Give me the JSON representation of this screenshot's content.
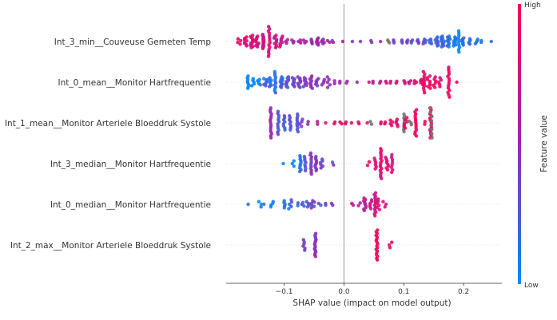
{
  "chart_data": {
    "type": "scatter",
    "subtype": "shap-beeswarm",
    "title": "",
    "xlabel": "SHAP value (impact on model output)",
    "ylabel": "",
    "xlim": [
      -0.197,
      0.264
    ],
    "xticks": [
      -0.1,
      0.0,
      0.1,
      0.2
    ],
    "xtick_labels": [
      "−0.1",
      "0.0",
      "0.1",
      "0.2"
    ],
    "zero_line": true,
    "grid": false,
    "colorbar": {
      "label": "Feature value",
      "high_label": "High",
      "low_label": "Low",
      "low_color": "#008afb",
      "mid_color": "#9c27b0",
      "high_color": "#ff0052",
      "placement": "right"
    },
    "features": [
      {
        "name": "Int_3_min__Couveuse Gemeten Temp",
        "clusters": [
          {
            "x": -0.175,
            "spread": 0.6,
            "n": 4,
            "c": 0.9
          },
          {
            "x": -0.165,
            "spread": 1.0,
            "n": 8,
            "c": 0.85
          },
          {
            "x": -0.155,
            "spread": 1.4,
            "n": 12,
            "c": 0.8
          },
          {
            "x": -0.145,
            "spread": 1.2,
            "n": 10,
            "c": 0.8
          },
          {
            "x": -0.135,
            "spread": 1.6,
            "n": 14,
            "c": 0.75
          },
          {
            "x": -0.125,
            "spread": 3.4,
            "n": 14,
            "c": 0.85
          },
          {
            "x": -0.115,
            "spread": 1.4,
            "n": 10,
            "c": 0.7
          },
          {
            "x": -0.105,
            "spread": 1.2,
            "n": 8,
            "c": 0.7
          },
          {
            "x": -0.095,
            "spread": 0.4,
            "n": 3,
            "c": 0.7
          },
          {
            "x": -0.085,
            "spread": 0.3,
            "n": 3,
            "c": 0.6
          },
          {
            "x": -0.075,
            "spread": 0.3,
            "n": 3,
            "c": 0.6
          },
          {
            "x": -0.065,
            "spread": 0.3,
            "n": 3,
            "c": 0.55
          },
          {
            "x": -0.055,
            "spread": 0.5,
            "n": 5,
            "c": 0.5
          },
          {
            "x": -0.045,
            "spread": 0.8,
            "n": 8,
            "c": 0.55
          },
          {
            "x": -0.035,
            "spread": 0.5,
            "n": 5,
            "c": 0.5
          },
          {
            "x": -0.025,
            "spread": 0.2,
            "n": 2,
            "c": 0.5
          },
          {
            "x": -0.018,
            "spread": 0.2,
            "n": 2,
            "c": 0.45
          },
          {
            "x": -0.002,
            "spread": 0.1,
            "n": 1,
            "c": 0.5
          },
          {
            "x": 0.015,
            "spread": 0.1,
            "n": 1,
            "c": 0.45
          },
          {
            "x": 0.03,
            "spread": 0.1,
            "n": 1,
            "c": 0.45
          },
          {
            "x": 0.045,
            "spread": 0.2,
            "n": 2,
            "c": 0.45
          },
          {
            "x": 0.06,
            "spread": 0.1,
            "n": 1,
            "c": 0.45
          },
          {
            "x": 0.075,
            "spread": 0.3,
            "n": 3,
            "c": -1
          },
          {
            "x": 0.085,
            "spread": 0.3,
            "n": 3,
            "c": 0.4
          },
          {
            "x": 0.095,
            "spread": 0.3,
            "n": 3,
            "c": 0.4
          },
          {
            "x": 0.105,
            "spread": 0.3,
            "n": 3,
            "c": 0.35
          },
          {
            "x": 0.115,
            "spread": 0.3,
            "n": 3,
            "c": 0.35
          },
          {
            "x": 0.125,
            "spread": 0.4,
            "n": 4,
            "c": 0.3
          },
          {
            "x": 0.135,
            "spread": 0.5,
            "n": 5,
            "c": 0.3
          },
          {
            "x": 0.145,
            "spread": 0.5,
            "n": 5,
            "c": 0.25
          },
          {
            "x": 0.155,
            "spread": 1.0,
            "n": 10,
            "c": 0.2
          },
          {
            "x": 0.165,
            "spread": 1.2,
            "n": 12,
            "c": 0.15
          },
          {
            "x": 0.175,
            "spread": 1.2,
            "n": 12,
            "c": 0.15
          },
          {
            "x": 0.185,
            "spread": 1.0,
            "n": 10,
            "c": 0.1
          },
          {
            "x": 0.192,
            "spread": 2.4,
            "n": 10,
            "c": 0.05
          },
          {
            "x": 0.2,
            "spread": 0.8,
            "n": 7,
            "c": 0.1
          },
          {
            "x": 0.21,
            "spread": 0.6,
            "n": 5,
            "c": 0.05
          },
          {
            "x": 0.222,
            "spread": 0.5,
            "n": 4,
            "c": 0.05
          },
          {
            "x": 0.23,
            "spread": 0.2,
            "n": 2,
            "c": 0.05
          },
          {
            "x": 0.245,
            "spread": 0.1,
            "n": 1,
            "c": 0.05
          }
        ]
      },
      {
        "name": "Int_0_mean__Monitor Hartfrequentie",
        "clusters": [
          {
            "x": -0.16,
            "spread": 1.4,
            "n": 8,
            "c": 0.05
          },
          {
            "x": -0.152,
            "spread": 0.8,
            "n": 5,
            "c": 0.1
          },
          {
            "x": -0.142,
            "spread": 0.6,
            "n": 5,
            "c": 0.1
          },
          {
            "x": -0.132,
            "spread": 0.8,
            "n": 7,
            "c": 0.15
          },
          {
            "x": -0.124,
            "spread": 1.0,
            "n": 8,
            "c": 0.15
          },
          {
            "x": -0.115,
            "spread": 2.4,
            "n": 12,
            "c": 0.15
          },
          {
            "x": -0.105,
            "spread": 1.2,
            "n": 10,
            "c": 0.2
          },
          {
            "x": -0.095,
            "spread": 1.2,
            "n": 10,
            "c": 0.25
          },
          {
            "x": -0.085,
            "spread": 1.0,
            "n": 9,
            "c": 0.3
          },
          {
            "x": -0.075,
            "spread": 1.2,
            "n": 9,
            "c": 0.35
          },
          {
            "x": -0.065,
            "spread": 1.0,
            "n": 8,
            "c": 0.4
          },
          {
            "x": -0.055,
            "spread": 1.4,
            "n": 9,
            "c": 0.45
          },
          {
            "x": -0.045,
            "spread": 0.8,
            "n": 6,
            "c": 0.45
          },
          {
            "x": -0.035,
            "spread": 0.6,
            "n": 4,
            "c": 0.5
          },
          {
            "x": -0.025,
            "spread": 1.2,
            "n": 5,
            "c": 0.5
          },
          {
            "x": -0.015,
            "spread": 0.3,
            "n": 2,
            "c": 0.5
          },
          {
            "x": -0.005,
            "spread": 0.2,
            "n": 2,
            "c": 0.5
          },
          {
            "x": 0.005,
            "spread": 0.2,
            "n": 2,
            "c": 0.55
          },
          {
            "x": 0.02,
            "spread": 0.1,
            "n": 1,
            "c": 0.55
          },
          {
            "x": 0.04,
            "spread": 0.1,
            "n": 1,
            "c": 0.6
          },
          {
            "x": 0.05,
            "spread": 0.2,
            "n": 2,
            "c": 0.65
          },
          {
            "x": 0.06,
            "spread": 0.2,
            "n": 2,
            "c": 0.7
          },
          {
            "x": 0.07,
            "spread": 0.2,
            "n": 2,
            "c": 0.7
          },
          {
            "x": 0.08,
            "spread": 0.2,
            "n": 2,
            "c": 0.75
          },
          {
            "x": 0.09,
            "spread": 0.2,
            "n": 2,
            "c": 0.8
          },
          {
            "x": 0.1,
            "spread": 0.3,
            "n": 3,
            "c": 0.8
          },
          {
            "x": 0.11,
            "spread": 0.3,
            "n": 3,
            "c": 0.8
          },
          {
            "x": 0.12,
            "spread": 0.3,
            "n": 3,
            "c": 0.85
          },
          {
            "x": 0.13,
            "spread": 0.6,
            "n": 6,
            "c": 0.85
          },
          {
            "x": 0.134,
            "spread": 2.4,
            "n": 10,
            "c": 0.9
          },
          {
            "x": 0.142,
            "spread": 1.4,
            "n": 8,
            "c": 0.9
          },
          {
            "x": 0.152,
            "spread": 1.2,
            "n": 6,
            "c": 0.9
          },
          {
            "x": 0.16,
            "spread": 1.0,
            "n": 5,
            "c": 0.9
          },
          {
            "x": 0.175,
            "spread": 3.4,
            "n": 14,
            "c": 0.95
          },
          {
            "x": 0.19,
            "spread": 0.2,
            "n": 1,
            "c": 0.95
          }
        ]
      },
      {
        "name": "Int_1_mean__Monitor Arteriele Bloeddruk Systole",
        "clusters": [
          {
            "x": -0.122,
            "spread": 3.4,
            "n": 16,
            "c": 0.5
          },
          {
            "x": -0.11,
            "spread": 2.6,
            "n": 12,
            "c": 0.3
          },
          {
            "x": -0.1,
            "spread": 1.6,
            "n": 8,
            "c": 0.25
          },
          {
            "x": -0.09,
            "spread": 1.6,
            "n": 8,
            "c": 0.3
          },
          {
            "x": -0.078,
            "spread": 2.0,
            "n": 10,
            "c": 0.3
          },
          {
            "x": -0.072,
            "spread": 0.8,
            "n": 4,
            "c": 0.4
          },
          {
            "x": -0.06,
            "spread": 0.3,
            "n": 2,
            "c": 0.5
          },
          {
            "x": -0.045,
            "spread": 0.3,
            "n": 2,
            "c": 0.6
          },
          {
            "x": -0.03,
            "spread": 0.1,
            "n": 1,
            "c": 0.8
          },
          {
            "x": -0.015,
            "spread": 0.2,
            "n": 2,
            "c": 0.85
          },
          {
            "x": -0.005,
            "spread": 0.2,
            "n": 2,
            "c": 0.85
          },
          {
            "x": 0.005,
            "spread": 0.2,
            "n": 2,
            "c": 0.9
          },
          {
            "x": 0.015,
            "spread": 0.1,
            "n": 1,
            "c": 0.9
          },
          {
            "x": 0.025,
            "spread": 0.2,
            "n": 2,
            "c": 0.85
          },
          {
            "x": 0.04,
            "spread": 0.1,
            "n": 1,
            "c": 0.9
          },
          {
            "x": 0.045,
            "spread": 0.3,
            "n": 2,
            "c": -1
          },
          {
            "x": 0.06,
            "spread": 0.2,
            "n": 2,
            "c": 0.9
          },
          {
            "x": 0.07,
            "spread": 0.2,
            "n": 2,
            "c": 0.9
          },
          {
            "x": 0.08,
            "spread": 0.6,
            "n": 4,
            "c": 0.9
          },
          {
            "x": 0.09,
            "spread": 0.8,
            "n": 5,
            "c": 0.85
          },
          {
            "x": 0.1,
            "spread": 2.0,
            "n": 10,
            "c": -1
          },
          {
            "x": 0.103,
            "spread": 1.2,
            "n": 6,
            "c": 0.9
          },
          {
            "x": 0.11,
            "spread": 0.4,
            "n": 3,
            "c": -1
          },
          {
            "x": 0.12,
            "spread": 3.0,
            "n": 14,
            "c": 0.95
          },
          {
            "x": 0.135,
            "spread": 0.3,
            "n": 2,
            "c": 0.9
          },
          {
            "x": 0.145,
            "spread": 3.4,
            "n": 16,
            "c": 0.95
          },
          {
            "x": 0.146,
            "spread": 3.4,
            "n": 8,
            "c": -1
          }
        ]
      },
      {
        "name": "Int_3_median__Monitor Hartfrequentie",
        "clusters": [
          {
            "x": -0.1,
            "spread": 0.2,
            "n": 1,
            "c": 0.05
          },
          {
            "x": -0.085,
            "spread": 0.6,
            "n": 3,
            "c": 0.1
          },
          {
            "x": -0.073,
            "spread": 1.8,
            "n": 10,
            "c": 0.1
          },
          {
            "x": -0.065,
            "spread": 1.6,
            "n": 8,
            "c": 0.25
          },
          {
            "x": -0.055,
            "spread": 2.4,
            "n": 12,
            "c": 0.4
          },
          {
            "x": -0.047,
            "spread": 1.6,
            "n": 10,
            "c": 0.35
          },
          {
            "x": -0.038,
            "spread": 1.0,
            "n": 6,
            "c": 0.4
          },
          {
            "x": -0.02,
            "spread": 0.3,
            "n": 2,
            "c": 0.35
          },
          {
            "x": 0.04,
            "spread": 0.4,
            "n": 2,
            "c": 0.85
          },
          {
            "x": 0.052,
            "spread": 1.2,
            "n": 6,
            "c": 0.8
          },
          {
            "x": 0.062,
            "spread": 3.4,
            "n": 16,
            "c": 0.85
          },
          {
            "x": 0.072,
            "spread": 1.4,
            "n": 8,
            "c": 0.85
          },
          {
            "x": 0.08,
            "spread": 2.0,
            "n": 8,
            "c": 0.8
          }
        ]
      },
      {
        "name": "Int_0_median__Monitor Hartfrequentie",
        "clusters": [
          {
            "x": -0.16,
            "spread": 0.1,
            "n": 1,
            "c": 0.05
          },
          {
            "x": -0.14,
            "spread": 0.6,
            "n": 3,
            "c": 0.05
          },
          {
            "x": -0.135,
            "spread": 0.1,
            "n": 1,
            "c": 0.1
          },
          {
            "x": -0.12,
            "spread": 0.6,
            "n": 4,
            "c": 0.05
          },
          {
            "x": -0.098,
            "spread": 0.8,
            "n": 5,
            "c": 0.1
          },
          {
            "x": -0.09,
            "spread": 1.0,
            "n": 5,
            "c": 0.2
          },
          {
            "x": -0.075,
            "spread": 0.3,
            "n": 2,
            "c": 0.15
          },
          {
            "x": -0.068,
            "spread": 0.4,
            "n": 3,
            "c": 0.2
          },
          {
            "x": -0.06,
            "spread": 0.6,
            "n": 4,
            "c": 0.3
          },
          {
            "x": -0.052,
            "spread": 0.8,
            "n": 6,
            "c": 0.4
          },
          {
            "x": -0.04,
            "spread": 0.2,
            "n": 2,
            "c": 0.3
          },
          {
            "x": -0.03,
            "spread": 0.2,
            "n": 2,
            "c": 0.3
          },
          {
            "x": -0.02,
            "spread": 0.2,
            "n": 2,
            "c": 0.35
          },
          {
            "x": 0.015,
            "spread": 0.2,
            "n": 2,
            "c": 0.7
          },
          {
            "x": 0.025,
            "spread": 0.3,
            "n": 2,
            "c": 0.6
          },
          {
            "x": 0.035,
            "spread": 1.4,
            "n": 10,
            "c": 0.6
          },
          {
            "x": 0.045,
            "spread": 1.0,
            "n": 6,
            "c": 0.7
          },
          {
            "x": 0.052,
            "spread": 2.6,
            "n": 14,
            "c": 0.75
          },
          {
            "x": 0.057,
            "spread": 1.2,
            "n": 6,
            "c": 0.8
          },
          {
            "x": 0.068,
            "spread": 0.6,
            "n": 3,
            "c": 0.8
          }
        ]
      },
      {
        "name": "Int_2_max__Monitor Arteriele Bloeddruk Systole",
        "clusters": [
          {
            "x": -0.068,
            "spread": 1.2,
            "n": 6,
            "c": 0.4
          },
          {
            "x": -0.048,
            "spread": 2.6,
            "n": 16,
            "c": 0.45
          },
          {
            "x": 0.055,
            "spread": 3.4,
            "n": 18,
            "c": 0.95
          },
          {
            "x": 0.078,
            "spread": 0.6,
            "n": 3,
            "c": 0.95
          }
        ]
      }
    ]
  }
}
